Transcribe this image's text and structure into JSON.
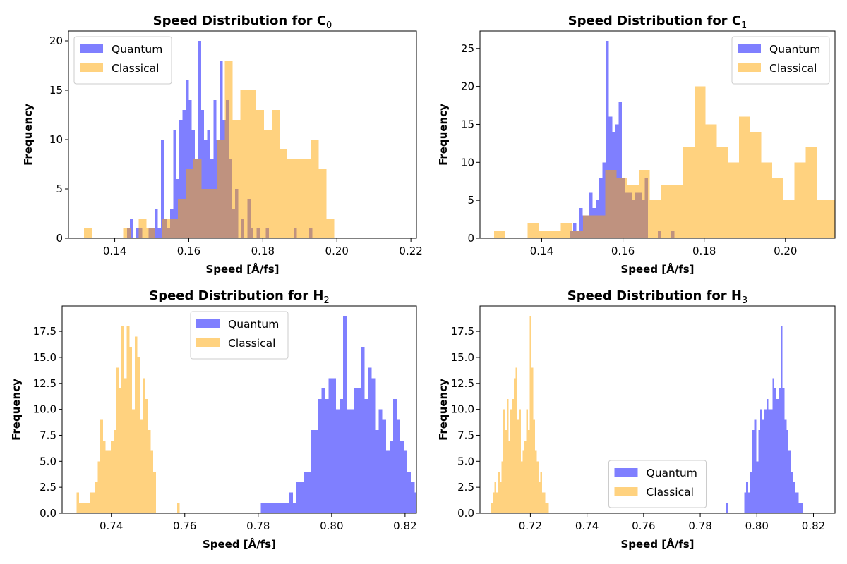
{
  "chart_data": [
    {
      "type": "histogram",
      "title": "Speed Distribution for C",
      "title_subscript": "0",
      "xlabel": "Speed [Å/fs]",
      "ylabel": "Frequency",
      "xlim": [
        0.1275,
        0.2215
      ],
      "ylim": [
        0,
        21
      ],
      "xticks": [
        0.14,
        0.16,
        0.18,
        0.2,
        0.22
      ],
      "yticks": [
        0,
        5,
        10,
        15,
        20
      ],
      "ytick_labels": [
        "0",
        "5",
        "10",
        "15",
        "20"
      ],
      "legend_position": "upper-left",
      "series": [
        {
          "name": "Quantum",
          "color": "#0000ff",
          "bin_start": 0.1433,
          "bin_width": 0.000834,
          "counts": [
            1,
            2,
            0,
            1,
            1,
            0,
            0,
            1,
            1,
            3,
            1,
            10,
            2,
            1,
            3,
            11,
            6,
            12,
            13,
            16,
            14,
            11,
            8,
            20,
            13,
            10,
            11,
            8,
            14,
            10,
            18,
            12,
            14,
            8,
            3,
            5,
            0,
            2,
            0,
            4,
            1,
            0,
            1,
            0,
            0,
            1,
            0,
            0,
            0,
            0,
            0,
            0,
            0,
            0,
            1,
            0,
            0,
            0,
            0,
            1
          ]
        },
        {
          "name": "Classical",
          "color": "#ffa500",
          "bin_start": 0.1317,
          "bin_width": 0.002113,
          "counts": [
            1,
            0,
            0,
            0,
            0,
            1,
            0,
            2,
            1,
            0,
            2,
            2,
            4,
            7,
            8,
            5,
            5,
            10,
            18,
            12,
            15,
            15,
            13,
            11,
            13,
            9,
            8,
            8,
            8,
            10,
            7,
            2
          ]
        }
      ]
    },
    {
      "type": "histogram",
      "title": "Speed Distribution for C",
      "title_subscript": "1",
      "xlabel": "Speed [Å/fs]",
      "ylabel": "Frequency",
      "xlim": [
        0.1248,
        0.2122
      ],
      "ylim": [
        0,
        27.3
      ],
      "xticks": [
        0.14,
        0.16,
        0.18,
        0.2
      ],
      "yticks": [
        0,
        5,
        10,
        15,
        20,
        25
      ],
      "ytick_labels": [
        "0",
        "5",
        "10",
        "15",
        "20",
        "25"
      ],
      "legend_position": "upper-right",
      "series": [
        {
          "name": "Quantum",
          "color": "#0000ff",
          "bin_start": 0.1469,
          "bin_width": 0.000804,
          "counts": [
            1,
            2,
            1,
            4,
            3,
            3,
            6,
            4,
            5,
            8,
            10,
            26,
            16,
            14,
            15,
            18,
            8,
            6,
            6,
            5,
            6,
            6,
            5,
            8,
            0,
            0,
            0,
            1,
            0,
            0,
            0,
            1
          ]
        },
        {
          "name": "Classical",
          "color": "#ffa500",
          "bin_start": 0.1283,
          "bin_width": 0.002738,
          "counts": [
            1,
            0,
            0,
            2,
            1,
            1,
            2,
            1,
            3,
            3,
            9,
            8,
            7,
            9,
            5,
            7,
            7,
            12,
            20,
            15,
            12,
            10,
            16,
            14,
            10,
            8,
            5,
            10,
            12,
            5,
            5
          ]
        }
      ]
    },
    {
      "type": "histogram",
      "title": "Speed Distribution for H",
      "title_subscript": "2",
      "xlabel": "Speed [Å/fs]",
      "ylabel": "Frequency",
      "xlim": [
        0.7266,
        0.8231
      ],
      "ylim": [
        0,
        19.95
      ],
      "xticks": [
        0.74,
        0.76,
        0.78,
        0.8,
        0.82
      ],
      "yticks": [
        0,
        2.5,
        5,
        7.5,
        10,
        12.5,
        15,
        17.5
      ],
      "ytick_labels": [
        "0.0",
        "2.5",
        "5.0",
        "7.5",
        "10.0",
        "12.5",
        "15.0",
        "17.5"
      ],
      "legend_position": "upper-center",
      "series": [
        {
          "name": "Quantum",
          "color": "#0000ff",
          "bin_start": 0.7807,
          "bin_width": 0.000974,
          "counts": [
            1,
            1,
            1,
            1,
            1,
            1,
            1,
            1,
            2,
            1,
            3,
            3,
            4,
            4,
            8,
            8,
            11,
            12,
            11,
            13,
            13,
            10,
            11,
            19,
            10,
            10,
            12,
            12,
            16,
            11,
            14,
            13,
            8,
            10,
            9,
            6,
            7,
            11,
            9,
            7,
            6,
            4,
            3,
            2,
            1,
            0,
            0,
            0,
            2,
            3
          ]
        },
        {
          "name": "Classical",
          "color": "#ffa500",
          "bin_start": 0.7305,
          "bin_width": 0.000721,
          "counts": [
            2,
            1,
            1,
            1,
            1,
            2,
            2,
            3,
            5,
            9,
            7,
            6,
            6,
            7,
            8,
            14,
            12,
            18,
            13,
            18,
            16,
            10,
            17,
            15,
            9,
            13,
            11,
            8,
            6,
            4,
            0,
            0,
            0,
            0,
            0,
            0,
            0,
            0,
            1
          ]
        }
      ]
    },
    {
      "type": "histogram",
      "title": "Speed Distribution for H",
      "title_subscript": "3",
      "xlabel": "Speed [Å/fs]",
      "ylabel": "Frequency",
      "xlim": [
        0.7022,
        0.8276
      ],
      "ylim": [
        0,
        19.95
      ],
      "xticks": [
        0.72,
        0.74,
        0.76,
        0.78,
        0.8,
        0.82
      ],
      "yticks": [
        0,
        2.5,
        5,
        7.5,
        10,
        12.5,
        15,
        17.5
      ],
      "ytick_labels": [
        "0.0",
        "2.5",
        "5.0",
        "7.5",
        "10.0",
        "12.5",
        "15.0",
        "17.5"
      ],
      "legend_position": "lower-center",
      "series": [
        {
          "name": "Quantum",
          "color": "#0000ff",
          "bin_start": 0.7891,
          "bin_width": 0.000713,
          "counts": [
            1,
            0,
            0,
            0,
            0,
            0,
            0,
            0,
            0,
            2,
            3,
            2,
            4,
            8,
            9,
            5,
            8,
            10,
            9,
            10,
            11,
            10,
            10,
            13,
            12,
            11,
            12,
            18,
            12,
            9,
            8,
            6,
            4,
            3,
            2,
            2,
            1,
            1
          ]
        },
        {
          "name": "Classical",
          "color": "#ffa500",
          "bin_start": 0.7061,
          "bin_width": 0.00062,
          "counts": [
            1,
            2,
            3,
            2,
            4,
            3,
            5,
            10,
            8,
            11,
            7,
            10,
            11,
            13,
            14,
            9,
            10,
            5,
            6,
            7,
            10,
            8,
            19,
            14,
            9,
            6,
            5,
            3,
            4,
            2,
            2,
            1,
            1
          ]
        }
      ]
    }
  ]
}
